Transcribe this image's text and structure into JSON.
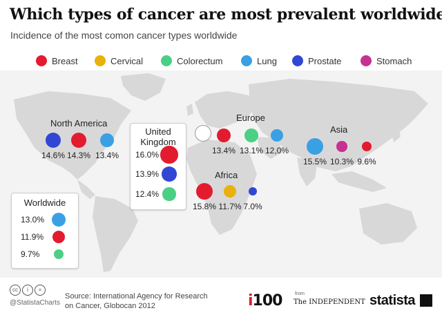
{
  "title": "Which types of cancer are most prevalent worldwide?",
  "subtitle": "Incidence of the most comon cancer types worldwide",
  "colors": {
    "Breast": "#e31b2f",
    "Cervical": "#e9b10c",
    "Colorectum": "#4bcf84",
    "Lung": "#3aa0e4",
    "Prostate": "#3147d4",
    "Stomach": "#c7318f"
  },
  "legend": [
    "Breast",
    "Cervical",
    "Colorectum",
    "Lung",
    "Prostate",
    "Stomach"
  ],
  "chart_data": {
    "type": "bubble-map",
    "title": "Which types of cancer are most prevalent worldwide?",
    "subtitle": "Incidence of the most comon cancer types worldwide",
    "unit": "%",
    "regions": [
      {
        "name": "North America",
        "series": [
          {
            "type": "Prostate",
            "value": 14.6,
            "label": "14.6%"
          },
          {
            "type": "Breast",
            "value": 14.3,
            "label": "14.3%"
          },
          {
            "type": "Lung",
            "value": 13.4,
            "label": "13.4%"
          }
        ]
      },
      {
        "name": "United Kingdom",
        "series": [
          {
            "type": "Breast",
            "value": 16.0,
            "label": "16.0%"
          },
          {
            "type": "Prostate",
            "value": 13.9,
            "label": "13.9%"
          },
          {
            "type": "Colorectum",
            "value": 12.4,
            "label": "12.4%"
          }
        ]
      },
      {
        "name": "Europe",
        "series": [
          {
            "type": "Breast",
            "value": 13.4,
            "label": "13.4%"
          },
          {
            "type": "Colorectum",
            "value": 13.1,
            "label": "13.1%"
          },
          {
            "type": "Lung",
            "value": 12.0,
            "label": "12,0%"
          }
        ]
      },
      {
        "name": "Asia",
        "series": [
          {
            "type": "Lung",
            "value": 15.5,
            "label": "15.5%"
          },
          {
            "type": "Stomach",
            "value": 10.3,
            "label": "10.3%"
          },
          {
            "type": "Breast",
            "value": 9.6,
            "label": "9.6%"
          }
        ]
      },
      {
        "name": "Africa",
        "series": [
          {
            "type": "Breast",
            "value": 15.8,
            "label": "15.8%"
          },
          {
            "type": "Cervical",
            "value": 11.7,
            "label": "11.7%"
          },
          {
            "type": "Prostate",
            "value": 7.0,
            "label": "7.0%"
          }
        ]
      },
      {
        "name": "Worldwide",
        "series": [
          {
            "type": "Lung",
            "value": 13.0,
            "label": "13.0%"
          },
          {
            "type": "Breast",
            "value": 11.9,
            "label": "11.9%"
          },
          {
            "type": "Colorectum",
            "value": 9.7,
            "label": "9.7%"
          }
        ]
      }
    ]
  },
  "labels": {
    "north_america": "North America",
    "uk_line1": "United",
    "uk_line2": "Kingdom",
    "europe": "Europe",
    "asia": "Asia",
    "africa": "Africa",
    "worldwide": "Worldwide"
  },
  "footer": {
    "handle": "@StatistaCharts",
    "source_line1": "Source: International Agency for Research",
    "source_line2": "on Cancer, Globocan 2012",
    "i100_i": "i",
    "i100_num": "100",
    "from": "from",
    "independent": "The INDEPENDENT",
    "statista": "statista"
  }
}
